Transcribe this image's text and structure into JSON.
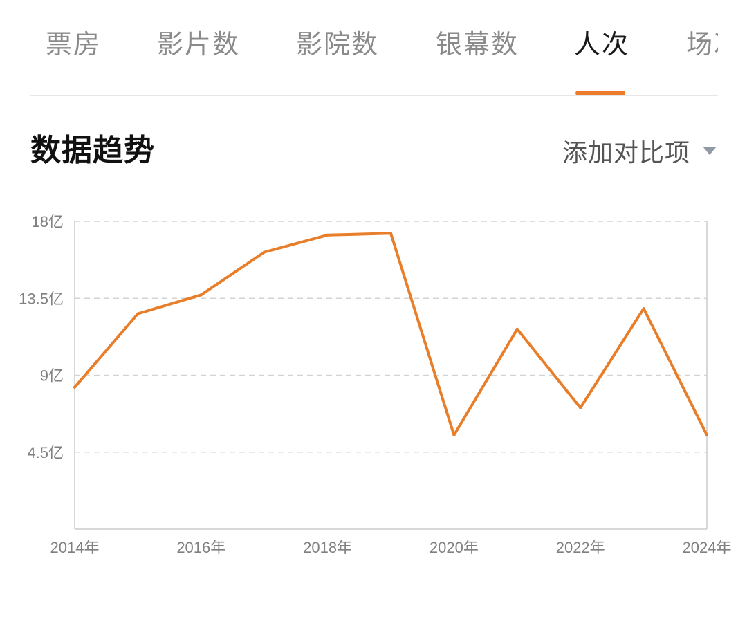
{
  "tabs": [
    {
      "label": "票房",
      "active": false
    },
    {
      "label": "影片数",
      "active": false
    },
    {
      "label": "影院数",
      "active": false
    },
    {
      "label": "银幕数",
      "active": false
    },
    {
      "label": "人次",
      "active": true
    },
    {
      "label": "场次",
      "active": false
    }
  ],
  "section": {
    "title": "数据趋势",
    "compare_label": "添加对比项",
    "compare_icon": "caret-down-icon"
  },
  "colors": {
    "accent": "#ee7d2b",
    "line": "#e87e2a",
    "grid": "#d3d3d3",
    "axis": "#cccccc"
  },
  "chart_data": {
    "type": "line",
    "x": [
      2014,
      2015,
      2016,
      2017,
      2018,
      2019,
      2020,
      2021,
      2022,
      2023,
      2024
    ],
    "series": [
      {
        "values": [
          8.3,
          12.6,
          13.7,
          16.2,
          17.2,
          17.3,
          5.5,
          11.7,
          7.1,
          12.9,
          5.5
        ]
      }
    ],
    "ylim": [
      0,
      18
    ],
    "yticks": [
      4.5,
      9,
      13.5,
      18
    ],
    "ytick_labels": [
      "4.5亿",
      "9亿",
      "13.5亿",
      "18亿"
    ],
    "xticks": [
      2014,
      2016,
      2018,
      2020,
      2022,
      2024
    ],
    "xtick_labels": [
      "2014年",
      "2016年",
      "2018年",
      "2020年",
      "2022年",
      "2024年"
    ],
    "grid": true,
    "grid_style": "dashed"
  }
}
